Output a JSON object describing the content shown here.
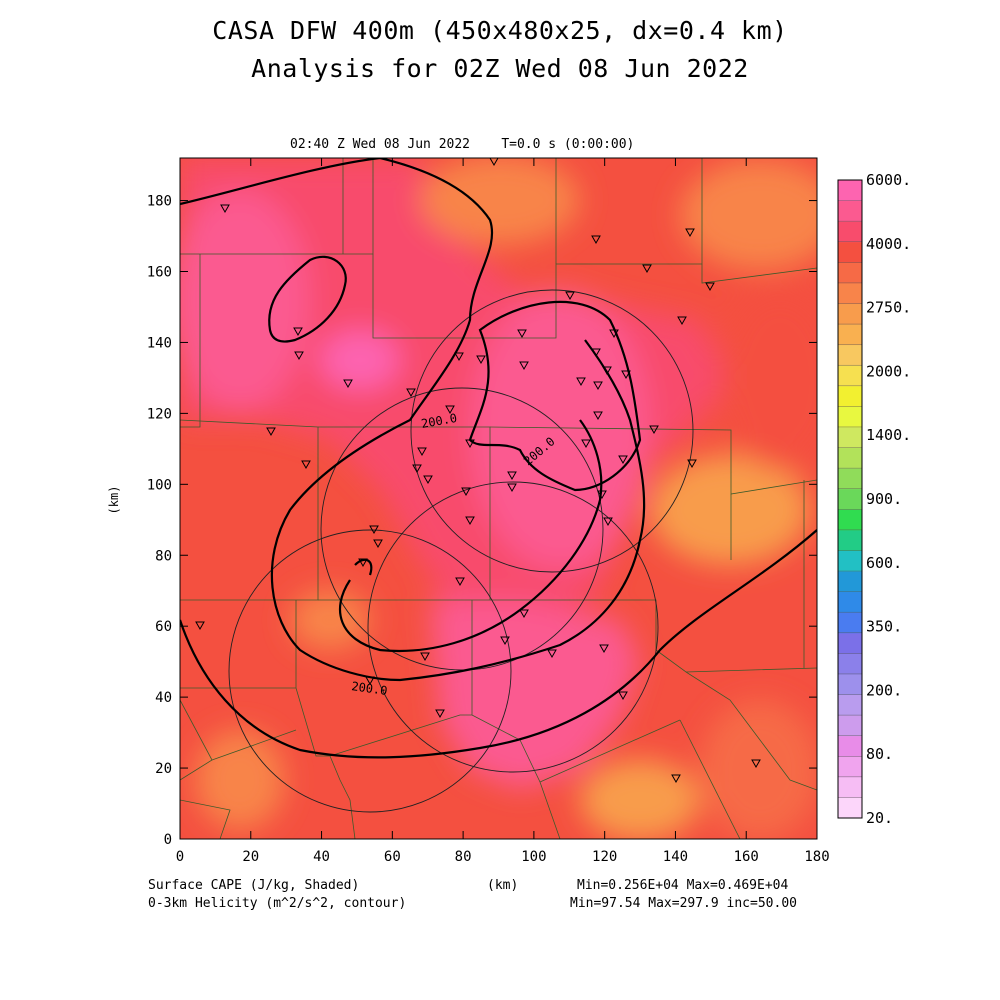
{
  "title_line1": "CASA DFW 400m (450x480x25, dx=0.4 km)",
  "title_line2": "Analysis for 02Z Wed 08 Jun 2022",
  "plot_time_label": "02:40 Z Wed 08 Jun 2022    T=0.0 s (0:00:00)",
  "footer": {
    "left1": "Surface CAPE (J/kg, Shaded)",
    "left2": "0-3km Helicity (m^2/s^2, contour)",
    "center": "(km)",
    "right1": "Min=0.256E+04 Max=0.469E+04",
    "right2": "Min=97.54 Max=297.9 inc=50.00"
  },
  "chart_data": {
    "type": "heatmap",
    "xlabel": "",
    "ylabel": "(km)",
    "xlim": [
      0,
      180
    ],
    "ylim": [
      0,
      192
    ],
    "x_ticks": [
      "0",
      "20",
      "40",
      "60",
      "80",
      "100",
      "120",
      "140",
      "160",
      "180"
    ],
    "y_ticks": [
      "0",
      "20",
      "40",
      "60",
      "80",
      "100",
      "120",
      "140",
      "160",
      "180"
    ],
    "colorbar": {
      "colors": [
        "#fcd6fa",
        "#f6bdf4",
        "#f0a4ee",
        "#e88ce8",
        "#cd9ced",
        "#b99cee",
        "#9d90ec",
        "#8b80ea",
        "#7b70e8",
        "#4a7cf0",
        "#2f8ae8",
        "#2298d8",
        "#22c0c4",
        "#22cc86",
        "#30dc50",
        "#6ad85a",
        "#90dc5a",
        "#b2e25a",
        "#cfe860",
        "#e8f840",
        "#f2f030",
        "#f6e050",
        "#f8c860",
        "#f9b050",
        "#f89c4c",
        "#f8844a",
        "#f66a46",
        "#f45040",
        "#f84c6c",
        "#fb5a90",
        "#fd64b0"
      ],
      "labels": [
        "20.",
        "80.",
        "200.",
        "350.",
        "600.",
        "900.",
        "1400.",
        "2000.",
        "2750.",
        "4000.",
        "6000."
      ]
    },
    "helicity_contour_labels": [
      "200.0",
      "200.0",
      "200.0"
    ]
  }
}
